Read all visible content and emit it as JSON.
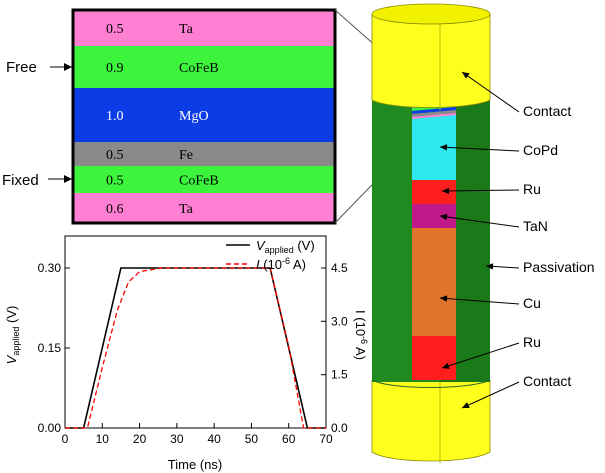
{
  "stack": {
    "layers": [
      {
        "thickness": "0.5",
        "material": "Ta",
        "color": "#ff7fd2"
      },
      {
        "thickness": "0.9",
        "material": "CoFeB",
        "color": "#3df43d"
      },
      {
        "thickness": "1.0",
        "material": "MgO",
        "color": "#0c3ce6"
      },
      {
        "thickness": "0.5",
        "material": "Fe",
        "color": "#8a8a8a"
      },
      {
        "thickness": "0.5",
        "material": "CoFeB",
        "color": "#3df43d"
      },
      {
        "thickness": "0.6",
        "material": "Ta",
        "color": "#ff7fd2"
      }
    ],
    "free_label": "Free",
    "fixed_label": "Fixed"
  },
  "pillar": {
    "labels": [
      "Contact",
      "CoPd",
      "Ru",
      "TaN",
      "Passivation",
      "Cu",
      "Ru",
      "Contact"
    ],
    "colors": {
      "contact": "#ffff1e",
      "passivation": "#1f8a1f",
      "copd": "#2ee8f0",
      "ru": "#ff1e1e",
      "tan": "#c01a8a",
      "cu": "#e0742a"
    }
  },
  "chart_data": {
    "type": "line",
    "xlabel": "Time (ns)",
    "ylabel_left": {
      "main": "V",
      "sub": "applied",
      "rest": " (V)"
    },
    "ylabel_right": {
      "main": "I (10",
      "sup": "-6",
      "rest": " A)"
    },
    "x_ticks": [
      "0",
      "10",
      "20",
      "30",
      "40",
      "50",
      "60",
      "70"
    ],
    "y_left_ticks": [
      "0.00",
      "0.15",
      "0.30"
    ],
    "y_right_ticks": [
      "0.0",
      "1.5",
      "3.0",
      "4.5"
    ],
    "xlim": [
      0,
      70
    ],
    "ylim_left": [
      0,
      0.36
    ],
    "ylim_right": [
      0,
      5.4
    ],
    "legend_position": "top-right",
    "series": [
      {
        "name_main": "V",
        "name_sub": "applied",
        "name_rest": " (V)",
        "axis": "left",
        "style": "solid",
        "color": "#000000",
        "x": [
          0,
          5,
          15,
          55,
          65,
          70
        ],
        "y": [
          0,
          0,
          0.3,
          0.3,
          0,
          0
        ]
      },
      {
        "name_main": "I",
        "name_rest": " (10",
        "name_sup": "-6",
        "name_tail": " A)",
        "axis": "right",
        "style": "dashed",
        "color": "#ff0000",
        "x": [
          0,
          6,
          10,
          14,
          17,
          20,
          23,
          26,
          30,
          40,
          50,
          55,
          60,
          64,
          70
        ],
        "y": [
          0,
          0,
          1.7,
          3.3,
          4.1,
          4.4,
          4.45,
          4.5,
          4.5,
          4.5,
          4.5,
          4.5,
          2.3,
          0,
          0
        ]
      }
    ]
  }
}
